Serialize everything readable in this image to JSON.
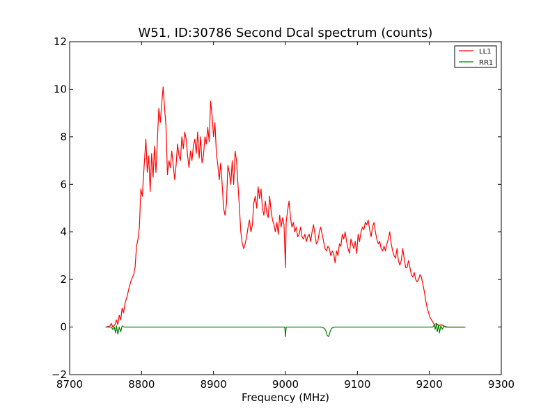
{
  "chart_data": {
    "type": "line",
    "title": "W51, ID:30786 Second Dcal spectrum (counts)",
    "xlabel": "Frequency (MHz)",
    "ylabel": "",
    "xlim": [
      8700,
      9300
    ],
    "ylim": [
      -2,
      12
    ],
    "xticks": [
      8700,
      8800,
      8900,
      9000,
      9100,
      9200,
      9300
    ],
    "xtick_labels": [
      "8700",
      "8800",
      "8900",
      "9000",
      "9100",
      "9200",
      "9300"
    ],
    "yticks": [
      -2,
      0,
      2,
      4,
      6,
      8,
      10,
      12
    ],
    "ytick_labels": [
      "−2",
      "0",
      "2",
      "4",
      "6",
      "8",
      "10",
      "12"
    ],
    "grid": false,
    "legend_position": "top-right",
    "series": [
      {
        "name": "LL1",
        "color": "#ff0000",
        "points": [
          [
            8750,
            0.0
          ],
          [
            8756,
            0.05
          ],
          [
            8758,
            0.15
          ],
          [
            8760,
            0.0
          ],
          [
            8763,
            0.1
          ],
          [
            8765,
            0.3
          ],
          [
            8767,
            0.1
          ],
          [
            8769,
            0.5
          ],
          [
            8771,
            0.3
          ],
          [
            8773,
            0.8
          ],
          [
            8775,
            0.6
          ],
          [
            8777,
            1.0
          ],
          [
            8780,
            1.3
          ],
          [
            8783,
            1.7
          ],
          [
            8786,
            2.0
          ],
          [
            8789,
            2.2
          ],
          [
            8791,
            2.5
          ],
          [
            8793,
            3.4
          ],
          [
            8795,
            3.7
          ],
          [
            8797,
            4.2
          ],
          [
            8799,
            5.8
          ],
          [
            8801,
            5.5
          ],
          [
            8804,
            7.0
          ],
          [
            8806,
            7.9
          ],
          [
            8808,
            6.5
          ],
          [
            8810,
            7.2
          ],
          [
            8812,
            5.7
          ],
          [
            8814,
            7.3
          ],
          [
            8816,
            6.3
          ],
          [
            8818,
            7.6
          ],
          [
            8820,
            6.5
          ],
          [
            8822,
            7.9
          ],
          [
            8824,
            9.2
          ],
          [
            8826,
            8.6
          ],
          [
            8828,
            9.4
          ],
          [
            8830,
            10.1
          ],
          [
            8832,
            9.2
          ],
          [
            8834,
            8.4
          ],
          [
            8836,
            6.4
          ],
          [
            8838,
            7.0
          ],
          [
            8840,
            6.7
          ],
          [
            8842,
            7.4
          ],
          [
            8844,
            6.8
          ],
          [
            8846,
            6.2
          ],
          [
            8848,
            6.8
          ],
          [
            8850,
            7.7
          ],
          [
            8852,
            7.2
          ],
          [
            8854,
            7.0
          ],
          [
            8856,
            8.0
          ],
          [
            8858,
            7.5
          ],
          [
            8860,
            8.2
          ],
          [
            8862,
            7.9
          ],
          [
            8864,
            7.2
          ],
          [
            8866,
            6.7
          ],
          [
            8868,
            7.4
          ],
          [
            8870,
            7.0
          ],
          [
            8872,
            7.6
          ],
          [
            8874,
            7.9
          ],
          [
            8876,
            7.3
          ],
          [
            8878,
            8.2
          ],
          [
            8880,
            7.1
          ],
          [
            8882,
            8.0
          ],
          [
            8884,
            6.9
          ],
          [
            8886,
            7.2
          ],
          [
            8888,
            8.0
          ],
          [
            8890,
            7.7
          ],
          [
            8892,
            8.4
          ],
          [
            8894,
            7.8
          ],
          [
            8896,
            9.5
          ],
          [
            8898,
            8.9
          ],
          [
            8900,
            8.0
          ],
          [
            8902,
            8.6
          ],
          [
            8904,
            7.3
          ],
          [
            8906,
            6.8
          ],
          [
            8908,
            6.2
          ],
          [
            8910,
            6.9
          ],
          [
            8912,
            6.0
          ],
          [
            8914,
            5.0
          ],
          [
            8916,
            4.7
          ],
          [
            8918,
            5.2
          ],
          [
            8920,
            6.8
          ],
          [
            8922,
            6.5
          ],
          [
            8924,
            6.0
          ],
          [
            8926,
            7.0
          ],
          [
            8928,
            6.0
          ],
          [
            8930,
            7.4
          ],
          [
            8932,
            7.0
          ],
          [
            8934,
            6.0
          ],
          [
            8936,
            5.0
          ],
          [
            8938,
            4.0
          ],
          [
            8940,
            3.5
          ],
          [
            8942,
            3.3
          ],
          [
            8944,
            3.5
          ],
          [
            8946,
            3.8
          ],
          [
            8948,
            4.2
          ],
          [
            8950,
            4.5
          ],
          [
            8952,
            4.0
          ],
          [
            8954,
            4.3
          ],
          [
            8956,
            5.2
          ],
          [
            8958,
            5.5
          ],
          [
            8960,
            5.0
          ],
          [
            8962,
            5.9
          ],
          [
            8964,
            5.4
          ],
          [
            8966,
            5.8
          ],
          [
            8968,
            5.0
          ],
          [
            8970,
            4.7
          ],
          [
            8972,
            5.3
          ],
          [
            8974,
            4.8
          ],
          [
            8976,
            4.6
          ],
          [
            8978,
            5.5
          ],
          [
            8980,
            4.9
          ],
          [
            8982,
            4.5
          ],
          [
            8984,
            4.3
          ],
          [
            8986,
            4.0
          ],
          [
            8988,
            4.4
          ],
          [
            8990,
            3.9
          ],
          [
            8992,
            4.7
          ],
          [
            8994,
            4.2
          ],
          [
            8996,
            4.6
          ],
          [
            8998,
            4.3
          ],
          [
            9000,
            2.5
          ],
          [
            9001,
            4.4
          ],
          [
            9003,
            4.9
          ],
          [
            9005,
            5.3
          ],
          [
            9007,
            4.6
          ],
          [
            9009,
            4.2
          ],
          [
            9011,
            4.4
          ],
          [
            9013,
            4.0
          ],
          [
            9015,
            4.2
          ],
          [
            9017,
            3.8
          ],
          [
            9019,
            3.9
          ],
          [
            9021,
            4.2
          ],
          [
            9023,
            3.8
          ],
          [
            9025,
            3.7
          ],
          [
            9027,
            3.9
          ],
          [
            9029,
            3.6
          ],
          [
            9031,
            3.8
          ],
          [
            9033,
            3.9
          ],
          [
            9035,
            3.6
          ],
          [
            9037,
            4.0
          ],
          [
            9039,
            4.3
          ],
          [
            9041,
            3.9
          ],
          [
            9043,
            3.5
          ],
          [
            9045,
            3.6
          ],
          [
            9047,
            4.0
          ],
          [
            9049,
            4.2
          ],
          [
            9051,
            3.9
          ],
          [
            9053,
            3.6
          ],
          [
            9055,
            3.3
          ],
          [
            9057,
            3.2
          ],
          [
            9059,
            3.4
          ],
          [
            9061,
            3.3
          ],
          [
            9063,
            3.0
          ],
          [
            9065,
            3.2
          ],
          [
            9067,
            3.1
          ],
          [
            9069,
            2.7
          ],
          [
            9071,
            3.2
          ],
          [
            9073,
            3.0
          ],
          [
            9075,
            3.5
          ],
          [
            9077,
            3.4
          ],
          [
            9079,
            3.9
          ],
          [
            9081,
            3.7
          ],
          [
            9083,
            4.0
          ],
          [
            9085,
            3.6
          ],
          [
            9087,
            3.3
          ],
          [
            9089,
            3.1
          ],
          [
            9091,
            3.7
          ],
          [
            9093,
            3.5
          ],
          [
            9095,
            3.3
          ],
          [
            9097,
            3.6
          ],
          [
            9099,
            3.1
          ],
          [
            9101,
            3.9
          ],
          [
            9103,
            3.6
          ],
          [
            9105,
            4.0
          ],
          [
            9107,
            4.2
          ],
          [
            9109,
            4.1
          ],
          [
            9111,
            4.4
          ],
          [
            9113,
            4.3
          ],
          [
            9115,
            4.5
          ],
          [
            9117,
            4.1
          ],
          [
            9119,
            3.8
          ],
          [
            9121,
            4.2
          ],
          [
            9123,
            4.4
          ],
          [
            9125,
            4.0
          ],
          [
            9127,
            3.7
          ],
          [
            9129,
            3.5
          ],
          [
            9131,
            3.6
          ],
          [
            9133,
            3.3
          ],
          [
            9135,
            3.2
          ],
          [
            9137,
            3.4
          ],
          [
            9139,
            3.2
          ],
          [
            9141,
            3.5
          ],
          [
            9143,
            3.7
          ],
          [
            9145,
            4.0
          ],
          [
            9147,
            3.5
          ],
          [
            9149,
            3.2
          ],
          [
            9151,
            3.0
          ],
          [
            9153,
            2.9
          ],
          [
            9155,
            3.3
          ],
          [
            9157,
            2.8
          ],
          [
            9159,
            2.6
          ],
          [
            9161,
            2.8
          ],
          [
            9163,
            3.3
          ],
          [
            9165,
            2.9
          ],
          [
            9167,
            2.5
          ],
          [
            9169,
            2.5
          ],
          [
            9171,
            2.8
          ],
          [
            9173,
            2.5
          ],
          [
            9175,
            2.2
          ],
          [
            9177,
            2.1
          ],
          [
            9179,
            2.3
          ],
          [
            9181,
            2.0
          ],
          [
            9183,
            1.9
          ],
          [
            9185,
            2.0
          ],
          [
            9187,
            2.2
          ],
          [
            9189,
            2.1
          ],
          [
            9191,
            1.8
          ],
          [
            9193,
            1.5
          ],
          [
            9195,
            1.1
          ],
          [
            9197,
            0.8
          ],
          [
            9199,
            0.6
          ],
          [
            9201,
            0.4
          ],
          [
            9203,
            0.3
          ],
          [
            9205,
            0.2
          ],
          [
            9207,
            0.1
          ],
          [
            9210,
            0.15
          ],
          [
            9213,
            0.05
          ],
          [
            9216,
            0.1
          ],
          [
            9220,
            0.05
          ],
          [
            9225,
            0.0
          ],
          [
            9235,
            0.0
          ],
          [
            9250,
            0.0
          ]
        ]
      },
      {
        "name": "RR1",
        "color": "#008000",
        "points": [
          [
            8750,
            0.0
          ],
          [
            8758,
            0.0
          ],
          [
            8760,
            -0.1
          ],
          [
            8762,
            0.0
          ],
          [
            8764,
            -0.25
          ],
          [
            8765,
            0.05
          ],
          [
            8767,
            -0.3
          ],
          [
            8769,
            0.0
          ],
          [
            8771,
            -0.2
          ],
          [
            8773,
            0.05
          ],
          [
            8776,
            0.0
          ],
          [
            8800,
            0.0
          ],
          [
            8850,
            0.0
          ],
          [
            8900,
            0.0
          ],
          [
            8950,
            0.0
          ],
          [
            8999,
            0.0
          ],
          [
            9000,
            -0.4
          ],
          [
            9001,
            0.0
          ],
          [
            9030,
            0.0
          ],
          [
            9050,
            0.0
          ],
          [
            9054,
            -0.05
          ],
          [
            9056,
            -0.15
          ],
          [
            9058,
            -0.35
          ],
          [
            9060,
            -0.4
          ],
          [
            9062,
            -0.2
          ],
          [
            9064,
            -0.05
          ],
          [
            9068,
            0.0
          ],
          [
            9100,
            0.0
          ],
          [
            9150,
            0.0
          ],
          [
            9205,
            0.0
          ],
          [
            9207,
            0.1
          ],
          [
            9208,
            -0.1
          ],
          [
            9210,
            0.15
          ],
          [
            9211,
            -0.2
          ],
          [
            9213,
            0.1
          ],
          [
            9214,
            -0.25
          ],
          [
            9216,
            0.05
          ],
          [
            9218,
            -0.1
          ],
          [
            9220,
            0.05
          ],
          [
            9222,
            0.0
          ],
          [
            9230,
            0.0
          ],
          [
            9250,
            0.0
          ]
        ]
      }
    ]
  }
}
